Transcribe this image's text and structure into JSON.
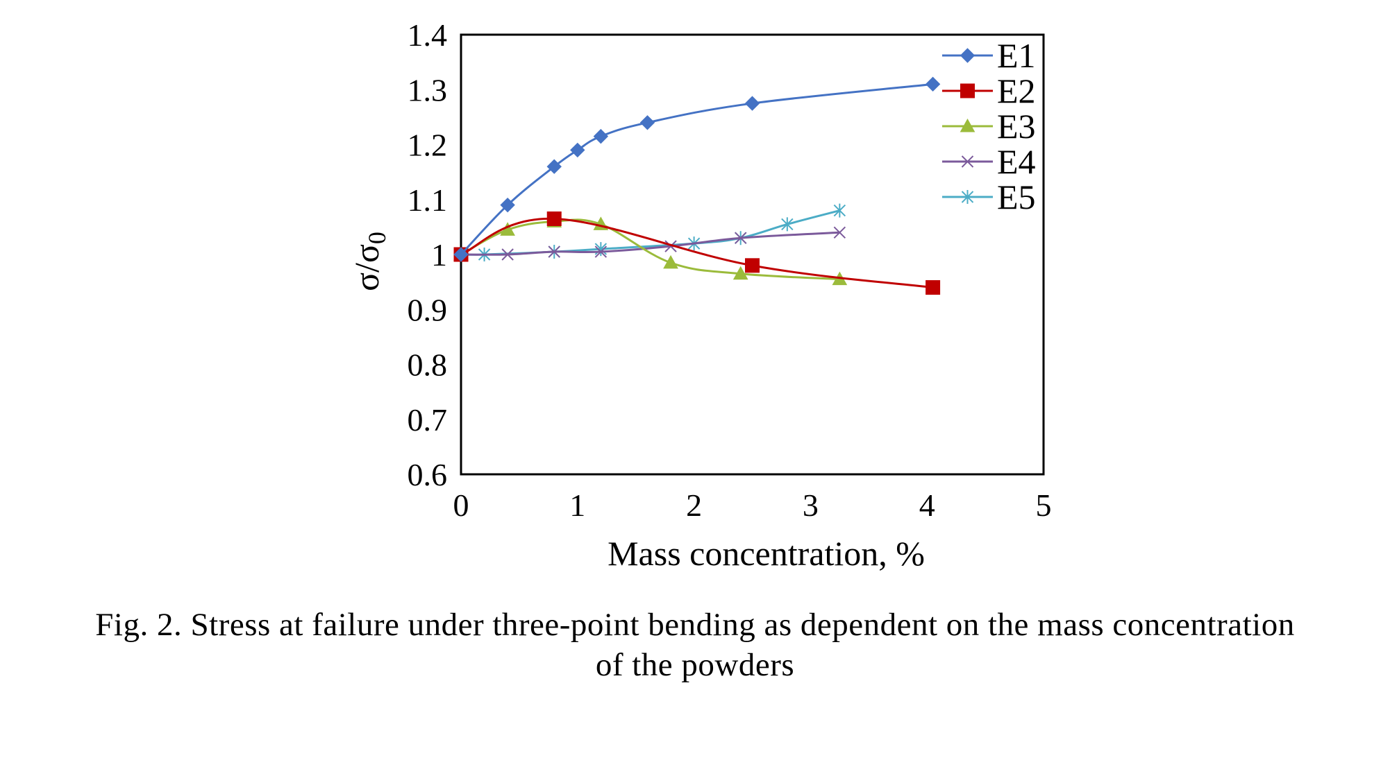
{
  "chart_data": {
    "type": "line",
    "title": "",
    "xlabel": "Mass concentration, %",
    "ylabel": {
      "main": "σ/σ",
      "subscript": "0"
    },
    "xlim": [
      0,
      5
    ],
    "ylim": [
      0.6,
      1.4
    ],
    "x_ticks": [
      "0",
      "1",
      "2",
      "3",
      "4",
      "5"
    ],
    "y_ticks": [
      "1.4",
      "1.3",
      "1.2",
      "1.1",
      "1",
      "0.9",
      "0.8",
      "0.7",
      "0.6"
    ],
    "grid": false,
    "legend_position": "top-right",
    "series": [
      {
        "name": "E1",
        "color": "#4472C4",
        "marker": "diamond",
        "x": [
          0,
          0.4,
          0.8,
          1.0,
          1.2,
          1.6,
          2.5,
          4.05
        ],
        "y": [
          1.0,
          1.09,
          1.16,
          1.19,
          1.215,
          1.24,
          1.275,
          1.31
        ]
      },
      {
        "name": "E2",
        "color": "#C00000",
        "marker": "square",
        "x": [
          0,
          0.8,
          2.5,
          4.05
        ],
        "y": [
          1.0,
          1.065,
          0.98,
          0.94
        ]
      },
      {
        "name": "E3",
        "color": "#9BBB3B",
        "marker": "triangle",
        "x": [
          0,
          0.4,
          0.8,
          1.2,
          1.8,
          2.4,
          3.25
        ],
        "y": [
          1.0,
          1.045,
          1.06,
          1.055,
          0.985,
          0.965,
          0.955
        ]
      },
      {
        "name": "E4",
        "color": "#7B5A9B",
        "marker": "x",
        "x": [
          0,
          0.4,
          0.8,
          1.2,
          1.8,
          2.4,
          3.25
        ],
        "y": [
          1.0,
          1.0,
          1.005,
          1.005,
          1.015,
          1.03,
          1.04
        ]
      },
      {
        "name": "E5",
        "color": "#4BACC6",
        "marker": "star",
        "x": [
          0,
          0.2,
          0.8,
          1.2,
          2.0,
          2.4,
          2.8,
          3.25
        ],
        "y": [
          1.0,
          1.0,
          1.005,
          1.01,
          1.02,
          1.03,
          1.055,
          1.08
        ]
      }
    ]
  },
  "caption": {
    "line1": "Fig. 2. Stress at failure under three-point bending as dependent on the mass concentration",
    "line2": "of the powders"
  }
}
